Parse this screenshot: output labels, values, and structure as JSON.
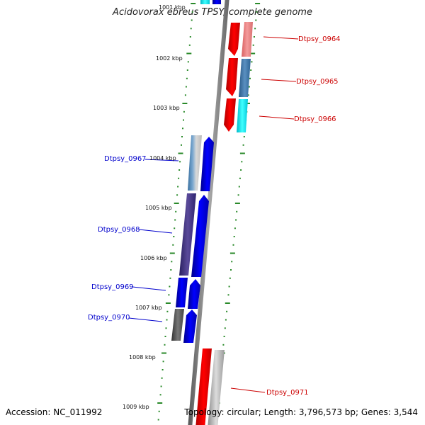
{
  "title": "Acidovorax ebreus TPSY, complete genome",
  "accession": "Accession: NC_011992",
  "topology": "Topology: circular; Length: 3,796,573 bp; Genes: 3,544",
  "colors": {
    "forward": "#ff0000",
    "reverse": "#0000ff",
    "tick": "#2a8a2a",
    "backbone": "#888888"
  },
  "scale_labels": [
    "1001 kbp",
    "1002 kbp",
    "1003 kbp",
    "1004 kbp",
    "1005 kbp",
    "1006 kbp",
    "1007 kbp",
    "1008 kbp",
    "1009 kbp"
  ],
  "genes_forward": [
    "Dtpsy_0964",
    "Dtpsy_0965",
    "Dtpsy_0966",
    "Dtpsy_0971"
  ],
  "genes_reverse": [
    "Dtpsy_0967",
    "Dtpsy_0968",
    "Dtpsy_0969",
    "Dtpsy_0970"
  ]
}
